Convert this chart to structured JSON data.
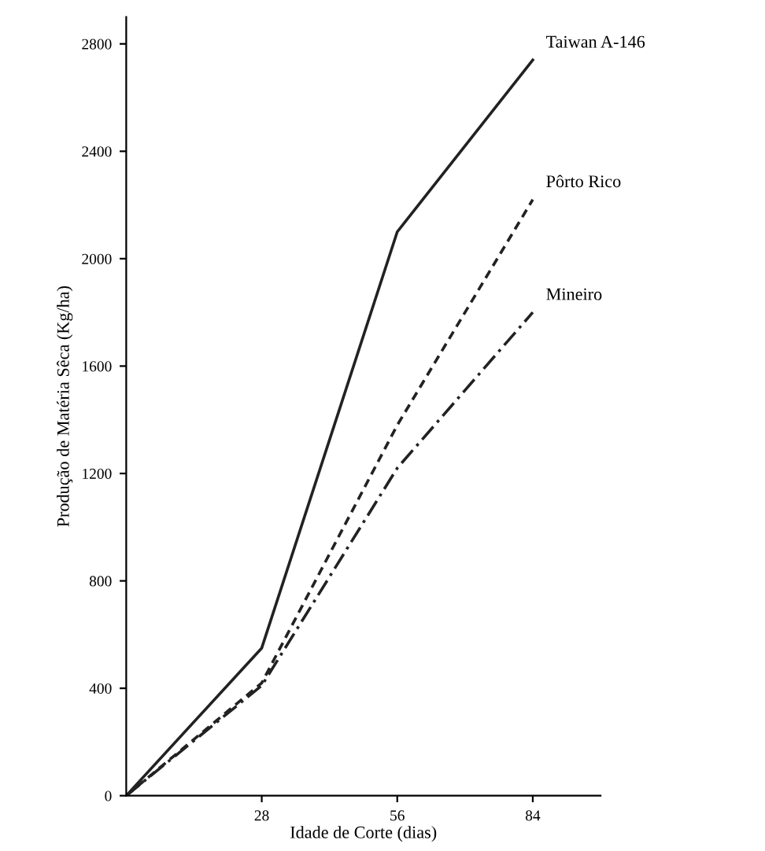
{
  "chart_data": {
    "type": "line",
    "xlabel": "Idade de Corte (dias)",
    "ylabel": "Produção de Matéria Sêca (Kg/ha)",
    "xlim": [
      0,
      98
    ],
    "xticks": [
      28,
      56,
      84
    ],
    "ylim": [
      0,
      2900
    ],
    "yticks": [
      0,
      400,
      800,
      1200,
      1600,
      2000,
      2400,
      2800
    ],
    "grid": false,
    "legend": false,
    "marker": "none",
    "series": [
      {
        "name": "Taiwan A-146",
        "color": "#222222",
        "line_style": "solid",
        "x": [
          0,
          28,
          56,
          84
        ],
        "values": [
          0,
          550,
          2100,
          2740
        ]
      },
      {
        "name": "Pôrto Rico",
        "color": "#222222",
        "line_style": "dashed",
        "x": [
          0,
          28,
          56,
          84
        ],
        "values": [
          0,
          420,
          1380,
          2220
        ]
      },
      {
        "name": "Mineiro",
        "color": "#222222",
        "line_style": "dashdot",
        "x": [
          0,
          28,
          56,
          84
        ],
        "values": [
          0,
          410,
          1220,
          1800
        ]
      }
    ]
  }
}
